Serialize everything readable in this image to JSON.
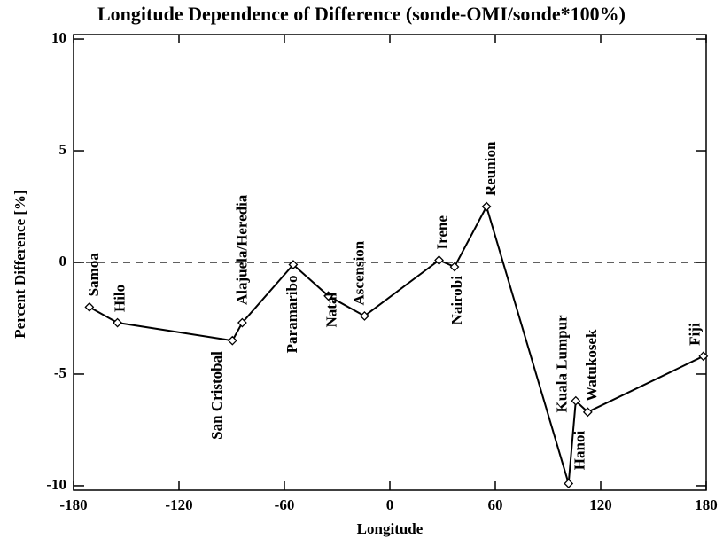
{
  "chart_data": {
    "type": "line",
    "title": "Longitude Dependence of Difference (sonde-OMI/sonde*100%)",
    "x_label": "Longitude",
    "y_label": "Percent Difference [%]",
    "x": [
      -171,
      -155,
      -89.6,
      -84,
      -55,
      -35,
      -14.4,
      28,
      36.8,
      55,
      101.7,
      105.8,
      112.6,
      178.4
    ],
    "series": [
      {
        "values": [
          -2.0,
          -2.7,
          -3.5,
          -2.7,
          -0.1,
          -1.5,
          -2.4,
          0.1,
          -0.2,
          2.5,
          -9.9,
          -6.2,
          -6.7,
          -4.2
        ],
        "color": "#000000"
      }
    ],
    "point_labels": [
      "Samoa",
      "Hilo",
      "San Cristobal",
      "Alajuela/Heredia",
      "Paramaribo",
      "Natal",
      "Ascension",
      "Irene",
      "Nairobi",
      "Reunion",
      "Kuala Lumpur",
      "Hanoi",
      "Watukosek",
      "Fiji"
    ],
    "xlim": [
      -180,
      180
    ],
    "xticks": [
      -180,
      -120,
      -60,
      0,
      60,
      120,
      180
    ],
    "ylim": [
      -10.2,
      10.2
    ],
    "yticks": [
      -10,
      -5,
      0,
      5,
      10
    ],
    "hline": 0,
    "marker": "diamond"
  }
}
